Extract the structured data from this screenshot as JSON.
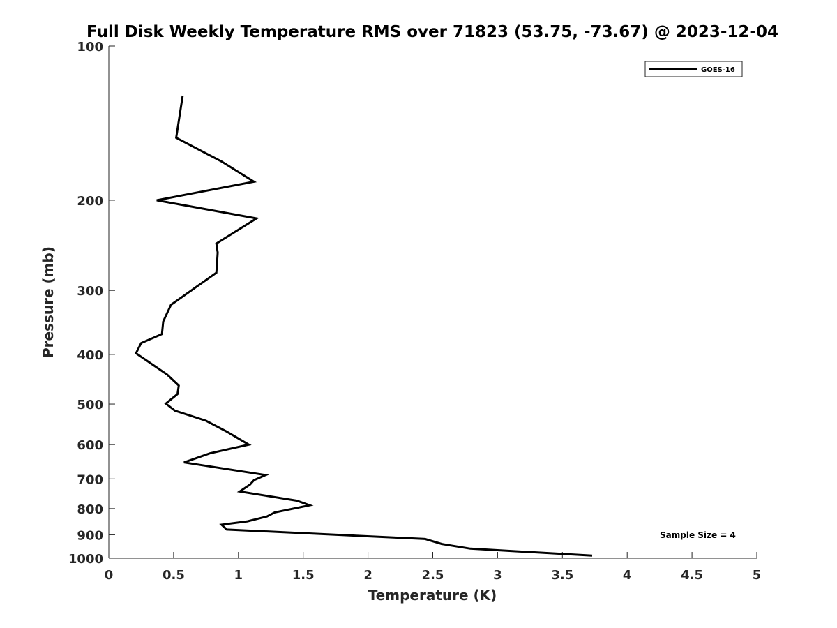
{
  "chart_data": {
    "type": "line",
    "title": "Full Disk Weekly Temperature RMS over 71823 (53.75, -73.67) @ 2023-12-04",
    "xlabel": "Temperature (K)",
    "ylabel": "Pressure (mb)",
    "xlim": [
      0,
      5
    ],
    "ylim": [
      1000,
      100
    ],
    "yscale": "log",
    "y_reversed": true,
    "grid": false,
    "legend_position": "top-right",
    "xticks": [
      0,
      0.5,
      1,
      1.5,
      2,
      2.5,
      3,
      3.5,
      4,
      4.5,
      5
    ],
    "xtick_labels": [
      "0",
      "0.5",
      "1",
      "1.5",
      "2",
      "2.5",
      "3",
      "3.5",
      "4",
      "4.5",
      "5"
    ],
    "yticks": [
      100,
      200,
      300,
      400,
      500,
      600,
      700,
      800,
      900,
      1000
    ],
    "ytick_labels": [
      "100",
      "200",
      "300",
      "400",
      "500",
      "600",
      "700",
      "800",
      "900",
      "1000"
    ],
    "series": [
      {
        "name": "GOES-16",
        "color": "#000000",
        "points": [
          [
            0.57,
            125
          ],
          [
            0.52,
            151
          ],
          [
            0.87,
            168
          ],
          [
            1.12,
            184
          ],
          [
            0.37,
            200
          ],
          [
            1.14,
            217
          ],
          [
            0.83,
            243
          ],
          [
            0.84,
            253
          ],
          [
            0.83,
            277
          ],
          [
            0.48,
            320
          ],
          [
            0.42,
            345
          ],
          [
            0.41,
            365
          ],
          [
            0.25,
            380
          ],
          [
            0.21,
            398
          ],
          [
            0.45,
            438
          ],
          [
            0.54,
            460
          ],
          [
            0.53,
            478
          ],
          [
            0.44,
            499
          ],
          [
            0.51,
            515
          ],
          [
            0.75,
            539
          ],
          [
            0.91,
            566
          ],
          [
            1.08,
            600
          ],
          [
            0.78,
            624
          ],
          [
            0.58,
            650
          ],
          [
            1.21,
            688
          ],
          [
            1.12,
            704
          ],
          [
            1.09,
            718
          ],
          [
            1.01,
            741
          ],
          [
            1.45,
            772
          ],
          [
            1.55,
            788
          ],
          [
            1.28,
            814
          ],
          [
            1.22,
            829
          ],
          [
            1.07,
            847
          ],
          [
            0.87,
            860
          ],
          [
            0.91,
            879
          ],
          [
            2.44,
            917
          ],
          [
            2.57,
            938
          ],
          [
            2.79,
            958
          ],
          [
            3.73,
            988
          ]
        ]
      }
    ],
    "legend": {
      "entries": [
        "GOES-16"
      ]
    },
    "annotations": [
      {
        "text": "Sample Size = 4"
      }
    ]
  }
}
